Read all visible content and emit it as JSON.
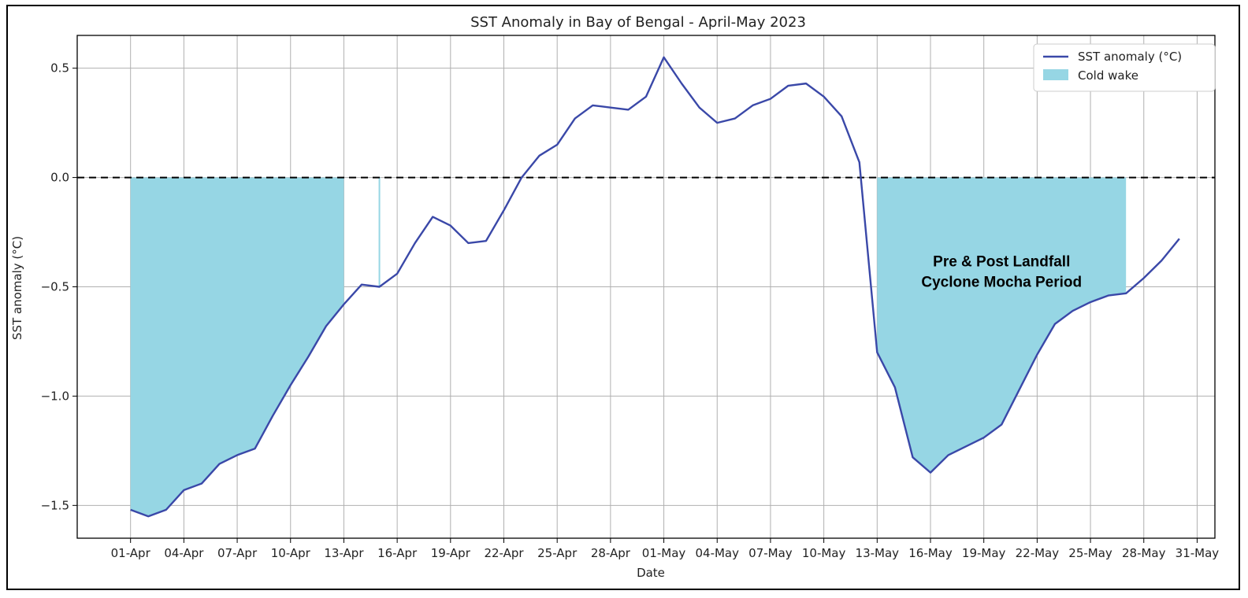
{
  "chart_data": {
    "type": "line",
    "title": "SST Anomaly in Bay of Bengal - April-May 2023",
    "xlabel": "Date",
    "ylabel": "SST anomaly (°C)",
    "x_start": "2023-04-01",
    "xlim": [
      "2023-03-29",
      "2023-06-01"
    ],
    "ylim": [
      -1.65,
      0.65
    ],
    "yticks": [
      -1.5,
      -1.0,
      -0.5,
      0.0,
      0.5
    ],
    "ytick_labels": [
      "−1.5",
      "−1.0",
      "−0.5",
      "0.0",
      "0.5"
    ],
    "xtick_labels": [
      "01-Apr",
      "04-Apr",
      "07-Apr",
      "10-Apr",
      "13-Apr",
      "16-Apr",
      "19-Apr",
      "22-Apr",
      "25-Apr",
      "28-Apr",
      "01-May",
      "04-May",
      "07-May",
      "10-May",
      "13-May",
      "16-May",
      "19-May",
      "22-May",
      "25-May",
      "28-May",
      "31-May"
    ],
    "xtick_dates": [
      "2023-04-01",
      "2023-04-04",
      "2023-04-07",
      "2023-04-10",
      "2023-04-13",
      "2023-04-16",
      "2023-04-19",
      "2023-04-22",
      "2023-04-25",
      "2023-04-28",
      "2023-05-01",
      "2023-05-04",
      "2023-05-07",
      "2023-05-10",
      "2023-05-13",
      "2023-05-16",
      "2023-05-19",
      "2023-05-22",
      "2023-05-25",
      "2023-05-28",
      "2023-05-31"
    ],
    "grid": true,
    "reference_line": {
      "y": 0.0,
      "style": "dashed",
      "color": "#000000"
    },
    "series": [
      {
        "name": "SST anomaly (°C)",
        "color": "#3a48a8",
        "x": [
          "2023-04-01",
          "2023-04-02",
          "2023-04-03",
          "2023-04-04",
          "2023-04-05",
          "2023-04-06",
          "2023-04-07",
          "2023-04-08",
          "2023-04-09",
          "2023-04-10",
          "2023-04-11",
          "2023-04-12",
          "2023-04-13",
          "2023-04-14",
          "2023-04-15",
          "2023-04-16",
          "2023-04-17",
          "2023-04-18",
          "2023-04-19",
          "2023-04-20",
          "2023-04-21",
          "2023-04-22",
          "2023-04-23",
          "2023-04-24",
          "2023-04-25",
          "2023-04-26",
          "2023-04-27",
          "2023-04-28",
          "2023-04-29",
          "2023-04-30",
          "2023-05-01",
          "2023-05-02",
          "2023-05-03",
          "2023-05-04",
          "2023-05-05",
          "2023-05-06",
          "2023-05-07",
          "2023-05-08",
          "2023-05-09",
          "2023-05-10",
          "2023-05-11",
          "2023-05-12",
          "2023-05-13",
          "2023-05-14",
          "2023-05-15",
          "2023-05-16",
          "2023-05-17",
          "2023-05-18",
          "2023-05-19",
          "2023-05-20",
          "2023-05-21",
          "2023-05-22",
          "2023-05-23",
          "2023-05-24",
          "2023-05-25",
          "2023-05-26",
          "2023-05-27",
          "2023-05-28",
          "2023-05-29",
          "2023-05-30"
        ],
        "values": [
          -1.52,
          -1.55,
          -1.52,
          -1.43,
          -1.4,
          -1.31,
          -1.27,
          -1.24,
          -1.09,
          -0.95,
          -0.82,
          -0.68,
          -0.58,
          -0.49,
          -0.5,
          -0.44,
          -0.3,
          -0.18,
          -0.22,
          -0.3,
          -0.29,
          -0.15,
          0.0,
          0.1,
          0.15,
          0.27,
          0.33,
          0.32,
          0.31,
          0.37,
          0.55,
          0.43,
          0.32,
          0.25,
          0.27,
          0.33,
          0.36,
          0.42,
          0.43,
          0.37,
          0.28,
          0.07,
          -0.8,
          -0.96,
          -1.28,
          -1.35,
          -1.27,
          -1.23,
          -1.19,
          -1.13,
          -0.97,
          -0.81,
          -0.67,
          -0.61,
          -0.57,
          -0.54,
          -0.53,
          -0.46,
          -0.38,
          -0.28
        ]
      }
    ],
    "fill": {
      "name": "Cold wake",
      "color": "#96d6e4",
      "baseline": 0.0,
      "ranges": [
        [
          "2023-04-01",
          "2023-04-13"
        ],
        [
          "2023-04-15",
          "2023-04-15"
        ],
        [
          "2023-05-13",
          "2023-05-27"
        ]
      ]
    },
    "legend": {
      "placement": "top-right",
      "entries": [
        "SST anomaly (°C)",
        "Cold wake"
      ]
    },
    "annotations": [
      {
        "lines": [
          "Pre & Post Landfall",
          "Cyclone Mocha Period"
        ],
        "x": "2023-05-20",
        "y": -0.45
      }
    ]
  }
}
